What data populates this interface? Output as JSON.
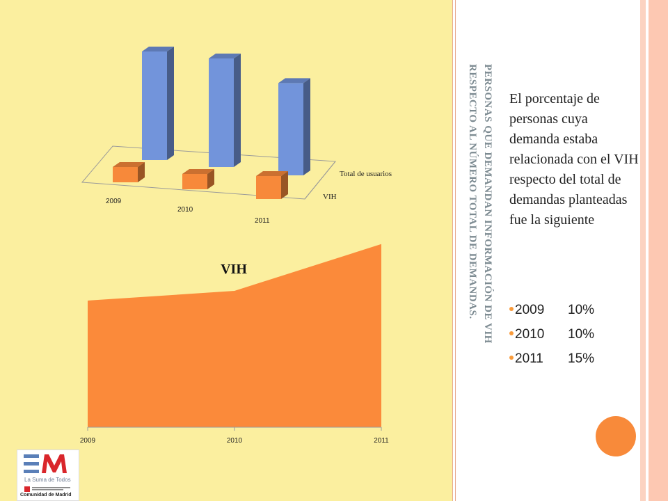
{
  "slide": {
    "title_line1": "PERSONAS QUE DEMANDAN INFORMACIÓN DE VIH",
    "title_line2": "RESPECTO AL NÚMERO TOTAL DE DEMANDAS.",
    "body_text": "El porcentaje de personas cuya demanda estaba relacionada con el VIH respecto del total de demandas planteadas fue la siguiente",
    "bullets": [
      {
        "year": "2009",
        "pct": "10%"
      },
      {
        "year": "2010",
        "pct": "10%"
      },
      {
        "year": "2011",
        "pct": "15%"
      }
    ],
    "colors": {
      "left_background": "#fbef9f",
      "accent_orange": "#f88a3a",
      "title_gray": "#7d8b92"
    }
  },
  "logo": {
    "tagline": "La Suma de Todos",
    "brand": "Comunidad de Madrid"
  },
  "chart_data": [
    {
      "type": "bar",
      "style": "3d-clustered",
      "categories": [
        "2009",
        "2010",
        "2011"
      ],
      "series": [
        {
          "name": "Total de usuarios",
          "values": [
            100,
            100,
            85
          ],
          "color": "#7294db"
        },
        {
          "name": "VIH",
          "values": [
            10,
            10,
            15
          ],
          "color": "#f7893a"
        }
      ],
      "title": "",
      "legend": "depth-axis-right"
    },
    {
      "type": "area",
      "title": "VIH",
      "x": [
        "2009",
        "2010",
        "2011"
      ],
      "values": [
        65,
        70,
        94
      ],
      "ylim": [
        0,
        100
      ],
      "color": "#fb8a3a",
      "grid": false
    }
  ]
}
